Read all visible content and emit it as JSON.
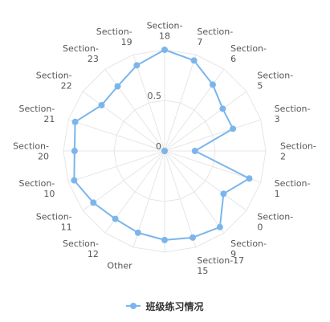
{
  "chart_data": {
    "type": "radar",
    "categories": [
      "Section-18",
      "Section-7",
      "Section-6",
      "Section-5",
      "Section-3",
      "Section-2",
      "Section-1",
      "Section-0",
      "Section-9",
      "Section-17",
      "15",
      "Other",
      "12",
      "11",
      "10",
      "20",
      "21",
      "22",
      "23",
      "19"
    ],
    "tick_labels": [
      "Section-\n18",
      "Section-\n7",
      "Section-\n6",
      "Section-\n5",
      "Section-\n3",
      "Section-\n2",
      "Section-\n1",
      "Section-\n0",
      "Section-\n9",
      "Section-17\n15",
      "",
      "Other",
      "Section-\n12",
      "Section-\n11",
      "Section-\n10",
      "Section-\n20",
      "Section-\n21",
      "Section-\n22",
      "Section-\n23",
      "Section-\n19"
    ],
    "series": [
      {
        "name": "班级练习情况",
        "values": [
          1.0,
          0.94,
          0.81,
          0.71,
          0.71,
          0.3,
          0.88,
          0.72,
          0.93,
          0.9,
          0.88,
          0.85,
          0.83,
          0.87,
          0.94,
          0.89,
          0.93,
          0.77,
          0.79,
          0.89
        ]
      }
    ],
    "radial_ticks": [
      0,
      0.5
    ],
    "ylim": [
      0,
      1
    ],
    "color": "#7cb5ec",
    "legend": "bottom-center"
  },
  "legend": {
    "label": "班级练习情况"
  }
}
